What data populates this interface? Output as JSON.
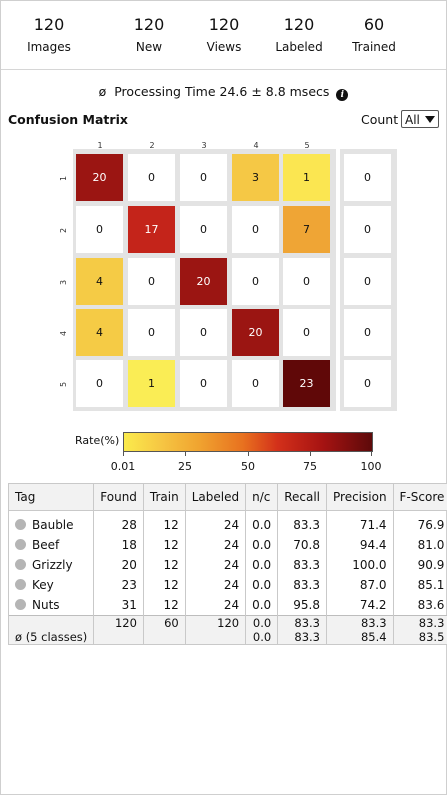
{
  "stats": [
    {
      "value": "120",
      "label": "Images"
    },
    {
      "value": "120",
      "label": "New"
    },
    {
      "value": "120",
      "label": "Views"
    },
    {
      "value": "120",
      "label": "Labeled"
    },
    {
      "value": "60",
      "label": "Trained"
    }
  ],
  "processing": {
    "symbol": "ø",
    "text": "Processing Time 24.6 ± 8.8 msecs",
    "info_icon": "info-icon"
  },
  "confusion": {
    "title": "Confusion Matrix",
    "count_label": "Count",
    "count_value": "All",
    "columns": [
      "1",
      "2",
      "3",
      "4",
      "5"
    ],
    "rows": [
      "1",
      "2",
      "3",
      "4",
      "5"
    ],
    "matrix": [
      [
        "20",
        "0",
        "0",
        "3",
        "1"
      ],
      [
        "0",
        "17",
        "0",
        "0",
        "7"
      ],
      [
        "4",
        "0",
        "20",
        "0",
        "0"
      ],
      [
        "4",
        "0",
        "0",
        "20",
        "0"
      ],
      [
        "0",
        "1",
        "0",
        "0",
        "23"
      ]
    ],
    "unassigned": [
      "0",
      "0",
      "0",
      "0",
      "0"
    ],
    "colors": [
      [
        "#9b1512",
        "#ffffff",
        "#ffffff",
        "#f5c845",
        "#fbe651"
      ],
      [
        "#ffffff",
        "#c4241a",
        "#ffffff",
        "#ffffff",
        "#efa535"
      ],
      [
        "#f5cb45",
        "#ffffff",
        "#9b1512",
        "#ffffff",
        "#ffffff"
      ],
      [
        "#f5cb45",
        "#ffffff",
        "#ffffff",
        "#9b1512",
        "#ffffff"
      ],
      [
        "#ffffff",
        "#faed55",
        "#ffffff",
        "#ffffff",
        "#600808"
      ]
    ],
    "legend": {
      "label": "Rate(%)",
      "ticks": [
        "0.01",
        "25",
        "50",
        "75",
        "100"
      ]
    }
  },
  "table": {
    "headers": [
      "Tag",
      "Found",
      "Train",
      "Labeled",
      "n/c",
      "Recall",
      "Precision",
      "F-Score"
    ],
    "rows": [
      [
        "Bauble",
        "28",
        "12",
        "24",
        "0.0",
        "83.3",
        "71.4",
        "76.9"
      ],
      [
        "Beef",
        "18",
        "12",
        "24",
        "0.0",
        "70.8",
        "94.4",
        "81.0"
      ],
      [
        "Grizzly",
        "20",
        "12",
        "24",
        "0.0",
        "83.3",
        "100.0",
        "90.9"
      ],
      [
        "Key",
        "23",
        "12",
        "24",
        "0.0",
        "83.3",
        "87.0",
        "85.1"
      ],
      [
        "Nuts",
        "31",
        "12",
        "24",
        "0.0",
        "95.8",
        "74.2",
        "83.6"
      ]
    ],
    "totals": [
      "",
      "120",
      "60",
      "120",
      "0.0",
      "83.3",
      "83.3",
      "83.3"
    ],
    "average": [
      "ø (5 classes)",
      "",
      "",
      "",
      "0.0",
      "83.3",
      "85.4",
      "83.5"
    ]
  }
}
